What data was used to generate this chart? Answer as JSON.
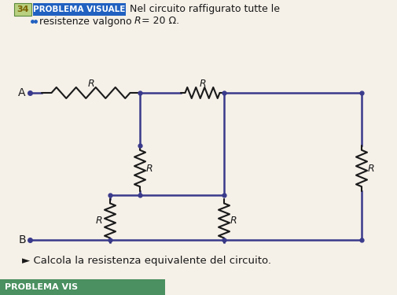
{
  "bg_color": "#f5f0e8",
  "wire_color": "#3a3a8c",
  "resistor_color": "#1a1a1a",
  "text_color": "#1a1a1a",
  "title_text": "PROBLEMA VISUALE",
  "title_num": "34",
  "subtitle1": "Nel circuito raffigurato tutte le",
  "subtitle2": "resistenze valgono R = 20 Ω.",
  "footer": "► Calcola la resistenza equivalente del circuito.",
  "footer2": "PROBLEMA VIS",
  "box_num_color": "#b8d080",
  "box_num_border": "#5a8a3c",
  "box_pv_color": "#2060c0",
  "footer_bar_color": "#4a9060",
  "num_text_color": "#7a6000"
}
